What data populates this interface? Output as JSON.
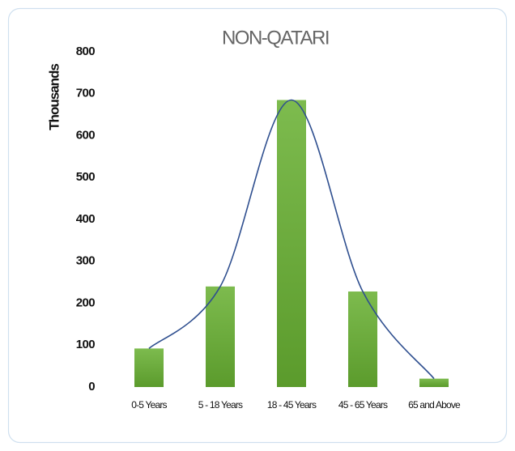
{
  "chart_data": {
    "type": "bar",
    "title": "NON-QATARI",
    "y_label": "Thousands",
    "categories": [
      "0-5 Years",
      "5 - 18 Years",
      "18 - 45 Years",
      "45 - 65 Years",
      "65 and Above"
    ],
    "values": [
      92,
      240,
      685,
      228,
      20
    ],
    "color": "#6aab3a",
    "line_color": "#2f4f8f",
    "trendline": true,
    "ylim": [
      0,
      800
    ],
    "yticks": [
      0,
      100,
      200,
      300,
      400,
      500,
      600,
      700,
      800
    ],
    "grid": false
  }
}
